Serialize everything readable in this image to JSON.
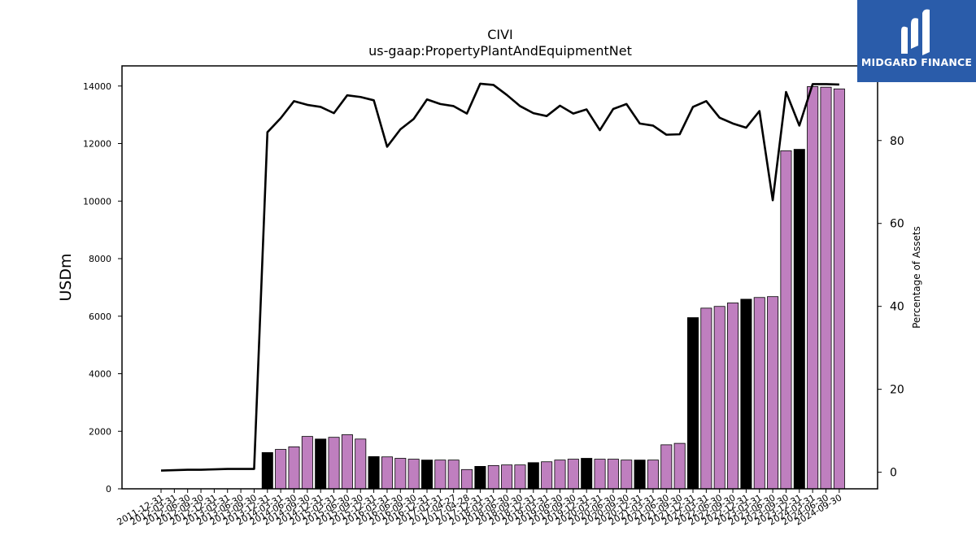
{
  "brand": {
    "name": "MIDGARD FINANCE",
    "color": "#2a5caa"
  },
  "chart_data": {
    "type": "bar",
    "title": "CIVI",
    "subtitle": "us-gaap:PropertyPlantAndEquipmentNet",
    "ylabel": "USDm",
    "y2label": "Percentage of Assets",
    "ylim": [
      0,
      14700
    ],
    "y2lim": [
      -4,
      98
    ],
    "yticks": [
      0,
      2000,
      4000,
      6000,
      8000,
      10000,
      12000,
      14000
    ],
    "y2ticks": [
      0,
      20,
      40,
      60,
      80
    ],
    "categories": [
      "2011-12-31",
      "2012-03-31",
      "2012-06-30",
      "2012-09-30",
      "2012-12-31",
      "2013-03-31",
      "2013-06-30",
      "2013-09-30",
      "2013-12-31",
      "2014-03-31",
      "2014-06-30",
      "2014-09-30",
      "2014-12-31",
      "2015-03-31",
      "2015-06-30",
      "2015-09-30",
      "2015-12-31",
      "2016-03-31",
      "2016-06-30",
      "2016-09-30",
      "2016-12-31",
      "2017-03-31",
      "2017-04-27",
      "2017-04-28",
      "2017-12-31",
      "2018-03-31",
      "2018-06-30",
      "2018-09-30",
      "2018-12-31",
      "2019-03-31",
      "2019-06-30",
      "2019-09-30",
      "2019-12-31",
      "2020-03-31",
      "2020-06-30",
      "2020-09-30",
      "2020-12-31",
      "2021-03-31",
      "2021-06-30",
      "2021-09-30",
      "2021-12-31",
      "2022-03-31",
      "2022-06-30",
      "2022-09-30",
      "2022-12-31",
      "2023-03-31",
      "2023-06-30",
      "2023-09-30",
      "2023-12-31",
      "2024-03-31",
      "2024-06-30",
      "2024-09-30"
    ],
    "series": [
      {
        "type": "bar",
        "values": [
          0,
          0,
          0,
          0,
          0,
          0,
          0,
          0,
          1260,
          1370,
          1460,
          1820,
          1730,
          1790,
          1880,
          1730,
          1120,
          1110,
          1060,
          1030,
          1000,
          1000,
          1000,
          670,
          780,
          810,
          830,
          830,
          910,
          940,
          1000,
          1030,
          1060,
          1030,
          1030,
          1000,
          1000,
          1000,
          1530,
          1580,
          5950,
          6280,
          6340,
          6460,
          6590,
          6650,
          6680,
          11750,
          11800,
          13980,
          13960,
          13900
        ],
        "highlighted_black_indices": [
          8,
          12,
          16,
          20,
          24,
          28,
          32,
          36,
          40,
          44,
          48
        ],
        "colors": {
          "default": "#bf7fbf",
          "highlight": "#000000"
        }
      },
      {
        "type": "line",
        "axis": "y2",
        "values": [
          0.4,
          0.5,
          0.6,
          0.6,
          0.7,
          0.8,
          0.8,
          0.8,
          82,
          85.4,
          89.5,
          88.6,
          88.1,
          86.6,
          90.9,
          90.5,
          89.7,
          78.5,
          82.7,
          85.2,
          89.9,
          88.8,
          88.3,
          86.5,
          93.7,
          93.4,
          91,
          88.3,
          86.6,
          85.9,
          88.4,
          86.5,
          87.5,
          82.5,
          87.6,
          88.8,
          84.1,
          83.6,
          81.4,
          81.5,
          88.1,
          89.5,
          85.5,
          84.1,
          83.1,
          87.1,
          65.6,
          91.7,
          83.6,
          93.6,
          93.6,
          93.5
        ],
        "color": "#000000"
      }
    ]
  }
}
